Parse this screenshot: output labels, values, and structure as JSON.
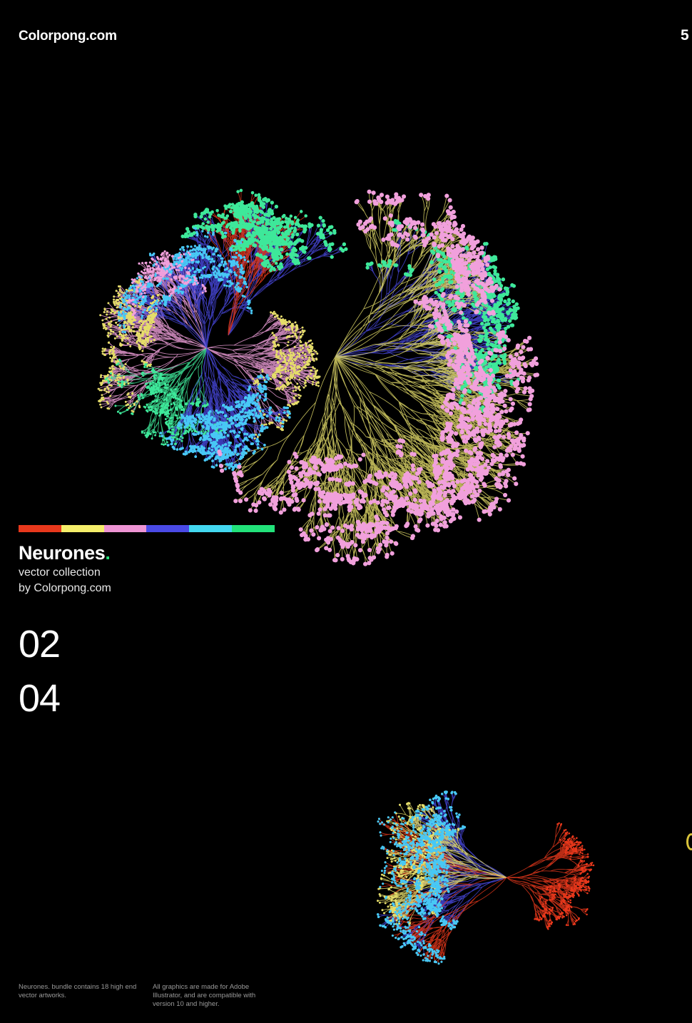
{
  "header": {
    "brand": "Colorpong.com",
    "page_number": "5"
  },
  "palette": [
    "#e8381c",
    "#f5ee6a",
    "#ee94d4",
    "#4a4ae6",
    "#43d8f0",
    "#22e27a"
  ],
  "collection": {
    "title": "Neurones",
    "title_dot": ".",
    "subtitle_line1": "vector collection",
    "subtitle_line2": "by Colorpong.com",
    "number_primary": "02",
    "number_secondary": "04"
  },
  "footer": {
    "col1": "Neurones. bundle contains 18 high end vector artworks.",
    "col2": "All graphics are made for Adobe Illustrator, and are compatible with version 10 and higher."
  },
  "artwork": {
    "subject": "neuron-network-illustration",
    "branch_colors": {
      "red": "#e8381c",
      "yellow": "#e5dd6a",
      "pink": "#f1a0dc",
      "blue": "#4848e0",
      "cyan": "#48c8f5",
      "green": "#3ee89a"
    }
  }
}
